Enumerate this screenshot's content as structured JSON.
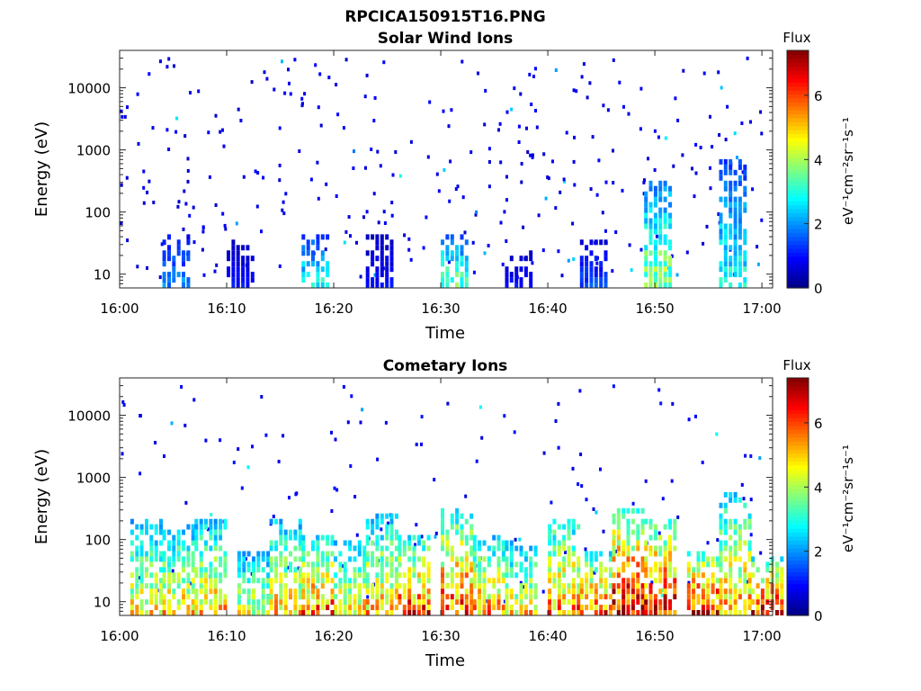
{
  "figure_title": "RPCICA150915T16.PNG",
  "chart_data": [
    {
      "type": "heatmap",
      "title": "Solar Wind Ions",
      "xlabel": "Time",
      "ylabel": "Energy (eV)",
      "x_range": [
        "16:00",
        "17:01"
      ],
      "x_ticks": [
        "16:00",
        "16:10",
        "16:20",
        "16:30",
        "16:40",
        "16:50",
        "17:00"
      ],
      "y_scale": "log",
      "ylim": [
        6,
        40000
      ],
      "y_ticks": [
        "10",
        "100",
        "1000",
        "10000"
      ],
      "colorbar": {
        "label": "Flux",
        "unit": "eV⁻¹cm⁻²sr⁻¹s⁻¹",
        "range": [
          0,
          7.4
        ],
        "ticks": [
          "0",
          "2",
          "4",
          "6"
        ],
        "colormap": "jet"
      },
      "grid": false,
      "low_energy_bursts": [
        {
          "time": "16:05",
          "emax": 40,
          "flux": 2.0
        },
        {
          "time": "16:11",
          "emax": 30,
          "flux": 1.0
        },
        {
          "time": "16:18",
          "emax": 40,
          "flux": 3.0
        },
        {
          "time": "16:24",
          "emax": 40,
          "flux": 1.0
        },
        {
          "time": "16:31",
          "emax": 40,
          "flux": 3.5
        },
        {
          "time": "16:37",
          "emax": 20,
          "flux": 1.0
        },
        {
          "time": "16:44",
          "emax": 30,
          "flux": 1.5
        },
        {
          "time": "16:50",
          "emax": 300,
          "flux": 4.0
        },
        {
          "time": "16:57",
          "emax": 700,
          "flux": 3.0
        }
      ],
      "sparse_counts_flux": 0.7
    },
    {
      "type": "heatmap",
      "title": "Cometary Ions",
      "xlabel": "Time",
      "ylabel": "Energy (eV)",
      "x_range": [
        "16:00",
        "17:01"
      ],
      "x_ticks": [
        "16:00",
        "16:10",
        "16:20",
        "16:30",
        "16:40",
        "16:50",
        "17:00"
      ],
      "y_scale": "log",
      "ylim": [
        6,
        40000
      ],
      "y_ticks": [
        "10",
        "100",
        "1000",
        "10000"
      ],
      "colorbar": {
        "label": "Flux",
        "unit": "eV⁻¹cm⁻²sr⁻¹s⁻¹",
        "range": [
          0,
          7.4
        ],
        "ticks": [
          "0",
          "2",
          "4",
          "6"
        ],
        "colormap": "jet"
      },
      "grid": false,
      "low_energy_bursts": [
        {
          "time": "16:02",
          "emax": 200,
          "flux": 4.8
        },
        {
          "time": "16:05",
          "emax": 150,
          "flux": 5.0
        },
        {
          "time": "16:08",
          "emax": 200,
          "flux": 5.2
        },
        {
          "time": "16:12",
          "emax": 60,
          "flux": 4.5
        },
        {
          "time": "16:15",
          "emax": 180,
          "flux": 5.2
        },
        {
          "time": "16:18",
          "emax": 100,
          "flux": 6.0
        },
        {
          "time": "16:21",
          "emax": 80,
          "flux": 5.0
        },
        {
          "time": "16:24",
          "emax": 250,
          "flux": 5.2
        },
        {
          "time": "16:27",
          "emax": 100,
          "flux": 6.2
        },
        {
          "time": "16:31",
          "emax": 300,
          "flux": 6.2
        },
        {
          "time": "16:34",
          "emax": 100,
          "flux": 5.5
        },
        {
          "time": "16:37",
          "emax": 80,
          "flux": 5.0
        },
        {
          "time": "16:41",
          "emax": 200,
          "flux": 5.8
        },
        {
          "time": "16:44",
          "emax": 60,
          "flux": 6.0
        },
        {
          "time": "16:47",
          "emax": 300,
          "flux": 7.0
        },
        {
          "time": "16:50",
          "emax": 200,
          "flux": 6.8
        },
        {
          "time": "16:54",
          "emax": 60,
          "flux": 6.8
        },
        {
          "time": "16:57",
          "emax": 500,
          "flux": 5.5
        },
        {
          "time": "17:00",
          "emax": 50,
          "flux": 6.5
        }
      ],
      "sparse_counts_flux": 0.8
    }
  ]
}
